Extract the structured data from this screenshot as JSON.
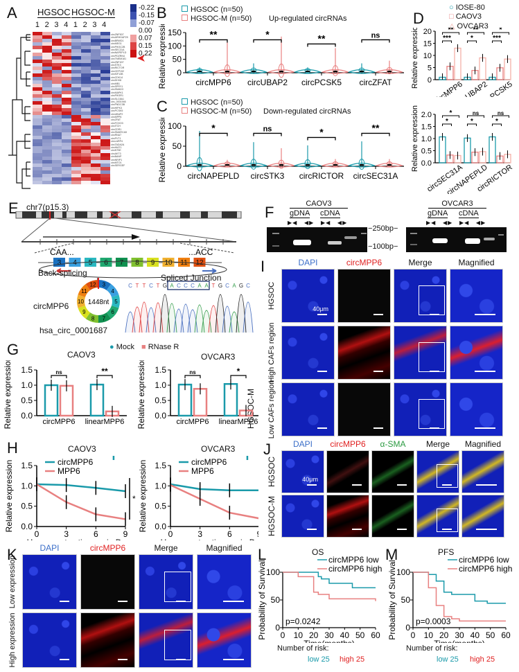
{
  "panels": {
    "A": {
      "label": "A",
      "groups": [
        "HGSOC",
        "HGSOC-M"
      ],
      "columns": [
        "1",
        "2",
        "3",
        "4",
        "1",
        "2",
        "3",
        "4"
      ],
      "legend": [
        "-0.22",
        "-0.15",
        "-0.07",
        "0.00",
        "0.07",
        "0.15",
        "0.22"
      ],
      "legend_colors": [
        "#1a2f8a",
        "#3d52b0",
        "#8f9fd6",
        "#ffffff",
        "#f0a0a0",
        "#dd4444",
        "#cc1111"
      ]
    },
    "B": {
      "label": "B",
      "legend": [
        "HGSOC (n=50)",
        "HGSOC-M (n=50)"
      ],
      "title": "Up-regulated circRNAs",
      "ylabel": "Relative expression",
      "yticks": [
        "0",
        "50",
        "100",
        "150"
      ],
      "categories": [
        "circMPP6",
        "circUBAP2",
        "circPCSK5",
        "circZFAT"
      ],
      "sig": [
        "**",
        "*",
        "**",
        "ns"
      ]
    },
    "C": {
      "label": "C",
      "legend": [
        "HGSOC (n=50)",
        "HGSOC-M (n=50)"
      ],
      "title": "Down-regulated circRNAs",
      "ylabel": "Relative expression",
      "yticks": [
        "0",
        "50",
        "100"
      ],
      "categories": [
        "circNAPEPLD",
        "circSTK3",
        "circRICTOR",
        "circSEC31A"
      ],
      "sig": [
        "*",
        "ns",
        "*",
        "**"
      ]
    },
    "D": {
      "label": "D",
      "legend": [
        "IOSE-80",
        "CAOV3",
        "OVCAR3"
      ],
      "ylabel": "Relative expression",
      "top_yticks": [
        "0",
        "5",
        "10",
        "15",
        "20"
      ],
      "top_categories": [
        "circMPP6",
        "circUBAP2",
        "circPCSK5"
      ],
      "bottom_yticks": [
        "0.0",
        "0.5",
        "1.0",
        "1.5",
        "2.0"
      ],
      "bottom_categories": [
        "circSEC31A",
        "circNAPEPLD",
        "circRICTOR"
      ]
    },
    "E": {
      "label": "E",
      "chrom": "chr7(p15.3)",
      "left_seq": "CAA...",
      "right_seq": "...ACC",
      "exons": [
        "3",
        "4",
        "5",
        "6",
        "7",
        "8",
        "9",
        "10",
        "11",
        "12"
      ],
      "back_splicing": "Back-splicing",
      "circ_name": "circMPP6",
      "length": "1448nt",
      "circ_id": "hsa_circ_0001687",
      "junction_label": "Spliced Junction",
      "sequence": [
        "C",
        "T",
        "T",
        "C",
        "T",
        "G",
        "A",
        "C",
        "C",
        "C",
        "A",
        "A",
        "T",
        "G",
        "C",
        "A",
        "G",
        "C"
      ]
    },
    "F": {
      "label": "F",
      "cells": [
        "CAOV3",
        "OVCAR3"
      ],
      "templates": [
        "gDNA",
        "cDNA"
      ],
      "markers": [
        "250bp",
        "100bp"
      ]
    },
    "G": {
      "label": "G",
      "legend": [
        "Mock",
        "RNase R"
      ],
      "subtitles": [
        "CAOV3",
        "OVCAR3"
      ],
      "ylabel": "Relative expression",
      "yticks": [
        "0.0",
        "0.5",
        "1.0",
        "1.5"
      ],
      "categories": [
        "circMPP6",
        "linearMPP6"
      ],
      "sig_caov3": [
        "ns",
        "**"
      ],
      "sig_ovcar3": [
        "ns",
        "*"
      ]
    },
    "H": {
      "label": "H",
      "subtitles": [
        "CAOV3",
        "OVCAR3"
      ],
      "legend": [
        "circMPP6",
        "MPP6"
      ],
      "ylabel": "Relative expression",
      "xlabel": "Hours post actinomycin D",
      "xticks": [
        "0",
        "3",
        "6",
        "9"
      ],
      "yticks": [
        "0.0",
        "0.5",
        "1.0",
        "1.5"
      ],
      "sig": "*"
    },
    "I": {
      "label": "I",
      "columns": [
        "DAPI",
        "circMPP6",
        "Merge",
        "Magnified"
      ],
      "rows": [
        "HGSOC",
        "High CAFs region",
        "Low CAFs region"
      ],
      "group": "HGSOC-M",
      "scale": "40μm"
    },
    "J": {
      "label": "J",
      "columns": [
        "DAPI",
        "circMPP6",
        "α-SMA",
        "Merge",
        "Magnified"
      ],
      "rows": [
        "HGSOC",
        "HGSOC-M"
      ],
      "scale": "40μm"
    },
    "K": {
      "label": "K",
      "columns": [
        "DAPI",
        "circMPP6",
        "Merge",
        "Magnified"
      ],
      "rows": [
        "Low expression",
        "High expression"
      ]
    },
    "L": {
      "label": "L",
      "title": "OS",
      "legend": [
        "circMPP6 low",
        "circMPP6 high"
      ],
      "ylabel": "Probability of Survival",
      "xlabel": "Time(months)",
      "xticks": [
        "0",
        "10",
        "20",
        "30",
        "40",
        "50",
        "60"
      ],
      "yticks": [
        "0",
        "50",
        "100"
      ],
      "pvalue": "p=0.0242",
      "risk_label": "Number of  risk:",
      "risk_low": "low 25",
      "risk_high": "high 25"
    },
    "M": {
      "label": "M",
      "title": "PFS",
      "legend": [
        "circMPP6 low",
        "circMPP6 high"
      ],
      "ylabel": "Probability of Survival",
      "xlabel": "Time(months)",
      "xticks": [
        "0",
        "10",
        "20",
        "30",
        "40",
        "50",
        "60"
      ],
      "yticks": [
        "0",
        "50",
        "100"
      ],
      "pvalue": "p=0.0003",
      "risk_label": "Number of  risk:",
      "risk_low": "low 25",
      "risk_high": "high 25"
    }
  },
  "colors": {
    "teal": "#1a9aaa",
    "salmon": "#e88080",
    "red": "#e02020",
    "blue_text": "#3a6ec8",
    "green_text": "#2a9a40"
  },
  "chart_data": [
    {
      "panel": "B",
      "type": "bar",
      "title": "Up-regulated circRNAs",
      "categories": [
        "circMPP6",
        "circUBAP2",
        "circPCSK5",
        "circZFAT"
      ],
      "series": [
        {
          "name": "HGSOC (n=50)",
          "max": [
            20,
            35,
            20,
            35
          ]
        },
        {
          "name": "HGSOC-M (n=50)",
          "max": [
            113,
            135,
            92,
            45
          ]
        }
      ],
      "ylabel": "Relative expression",
      "ylim": [
        0,
        150
      ],
      "significance": [
        "**",
        "*",
        "**",
        "ns"
      ]
    },
    {
      "panel": "C",
      "type": "bar",
      "title": "Down-regulated circRNAs",
      "categories": [
        "circNAPEPLD",
        "circSTK3",
        "circRICTOR",
        "circSEC31A"
      ],
      "series": [
        {
          "name": "HGSOC (n=50)",
          "max": [
            88,
            60,
            52,
            62
          ]
        },
        {
          "name": "HGSOC-M (n=50)",
          "max": [
            16,
            45,
            18,
            18
          ]
        }
      ],
      "ylabel": "Relative expression",
      "ylim": [
        0,
        100
      ],
      "significance": [
        "*",
        "ns",
        "*",
        "**"
      ]
    },
    {
      "panel": "D-top",
      "type": "bar",
      "categories": [
        "circMPP6",
        "circUBAP2",
        "circPCSK5"
      ],
      "series": [
        {
          "name": "IOSE-80",
          "values": [
            1,
            1,
            1
          ]
        },
        {
          "name": "CAOV3",
          "values": [
            5.5,
            3.8,
            4.9
          ]
        },
        {
          "name": "OVCAR3",
          "values": [
            13,
            9,
            8.5
          ]
        }
      ],
      "ylabel": "Relative expression",
      "ylim": [
        0,
        20
      ]
    },
    {
      "panel": "D-bottom",
      "type": "bar",
      "categories": [
        "circSEC31A",
        "circNAPEPLD",
        "circRICTOR"
      ],
      "series": [
        {
          "name": "IOSE-80",
          "values": [
            1.07,
            1.02,
            1.07
          ]
        },
        {
          "name": "CAOV3",
          "values": [
            0.32,
            0.44,
            0.28
          ]
        },
        {
          "name": "OVCAR3",
          "values": [
            0.3,
            0.46,
            0.35
          ]
        }
      ],
      "ylabel": "Relative expression",
      "ylim": [
        0,
        2.0
      ]
    },
    {
      "panel": "G-CAOV3",
      "type": "bar",
      "categories": [
        "circMPP6",
        "linearMPP6"
      ],
      "series": [
        {
          "name": "Mock",
          "values": [
            1.0,
            1.02
          ]
        },
        {
          "name": "RNase R",
          "values": [
            0.98,
            0.14
          ]
        }
      ],
      "ylim": [
        0,
        1.5
      ]
    },
    {
      "panel": "G-OVCAR3",
      "type": "bar",
      "categories": [
        "circMPP6",
        "linearMPP6"
      ],
      "series": [
        {
          "name": "Mock",
          "values": [
            1.02,
            1.04
          ]
        },
        {
          "name": "RNase R",
          "values": [
            0.88,
            0.17
          ]
        }
      ],
      "ylim": [
        0,
        1.5
      ]
    },
    {
      "panel": "H-CAOV3",
      "type": "line",
      "x": [
        0,
        3,
        6,
        9
      ],
      "series": [
        {
          "name": "circMPP6",
          "values": [
            1.04,
            1.02,
            0.95,
            0.87
          ]
        },
        {
          "name": "MPP6",
          "values": [
            1.04,
            0.6,
            0.3,
            0.18
          ]
        }
      ],
      "xlabel": "Hours post actinomycin D",
      "ylim": [
        0,
        1.5
      ]
    },
    {
      "panel": "H-OVCAR3",
      "type": "line",
      "x": [
        0,
        3,
        6,
        9
      ],
      "series": [
        {
          "name": "circMPP6",
          "values": [
            1.04,
            0.92,
            0.89,
            0.89
          ]
        },
        {
          "name": "MPP6",
          "values": [
            1.02,
            0.68,
            0.34,
            0.2
          ]
        }
      ],
      "xlabel": "Hours post actinomycin D",
      "ylim": [
        0,
        1.5
      ]
    },
    {
      "panel": "L",
      "type": "line",
      "title": "OS",
      "x": [
        0,
        10,
        20,
        23,
        25,
        30,
        40,
        45,
        60
      ],
      "series": [
        {
          "name": "circMPP6 low",
          "values": [
            100,
            100,
            100,
            92,
            88,
            80,
            80,
            72,
            72
          ]
        },
        {
          "name": "circMPP6 high",
          "values": [
            100,
            92,
            64,
            60,
            60,
            52,
            52,
            52,
            48
          ]
        }
      ],
      "xlabel": "Time(months)",
      "ylabel": "Probability of Survival",
      "ylim": [
        0,
        100
      ],
      "pvalue": "p=0.0242"
    },
    {
      "panel": "M",
      "type": "line",
      "title": "PFS",
      "x": [
        0,
        10,
        15,
        20,
        25,
        30,
        40,
        48,
        60
      ],
      "series": [
        {
          "name": "circMPP6 low",
          "values": [
            100,
            96,
            84,
            64,
            60,
            60,
            48,
            44,
            44
          ]
        },
        {
          "name": "circMPP6 high",
          "values": [
            100,
            72,
            40,
            20,
            16,
            12,
            12,
            12,
            12
          ]
        }
      ],
      "xlabel": "Time(months)",
      "ylabel": "Probability of Survival",
      "ylim": [
        0,
        100
      ],
      "pvalue": "p=0.0003"
    }
  ]
}
